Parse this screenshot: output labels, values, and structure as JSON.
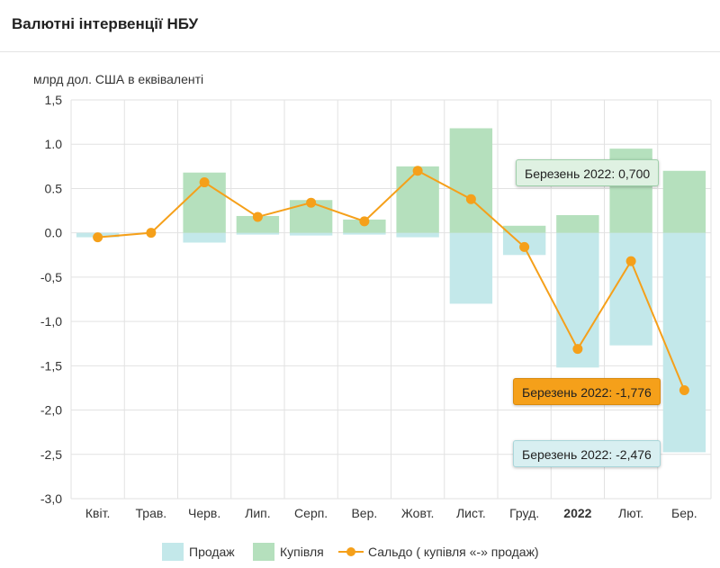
{
  "header": {
    "title": "Валютні інтервенції НБУ"
  },
  "chart_data": {
    "type": "bar",
    "ylabel": "млрд дол. США в еквіваленті",
    "ylim": [
      -3.0,
      1.5
    ],
    "y_ticks": [
      "1,5",
      "1.0",
      "0.5",
      "0.0",
      "-0,5",
      "-1,0",
      "-1,5",
      "-2,0",
      "-2,5",
      "-3,0"
    ],
    "y_tick_values": [
      1.5,
      1.0,
      0.5,
      0.0,
      -0.5,
      -1.0,
      -1.5,
      -2.0,
      -2.5,
      -3.0
    ],
    "categories": [
      "Квіт.",
      "Трав.",
      "Черв.",
      "Лип.",
      "Серп.",
      "Вер.",
      "Жовт.",
      "Лист.",
      "Груд.",
      "2022",
      "Лют.",
      "Бер."
    ],
    "bold_categories": [
      "2022"
    ],
    "grid": true,
    "legend_position": "bottom",
    "series": [
      {
        "name": "Продаж",
        "type": "bar",
        "color": "#c3e8ea",
        "values": [
          -0.05,
          0.0,
          -0.11,
          -0.02,
          -0.03,
          -0.02,
          -0.05,
          -0.8,
          -0.25,
          -1.52,
          -1.27,
          -2.476
        ]
      },
      {
        "name": "Купівля",
        "type": "bar",
        "color": "#b5e0bd",
        "values": [
          0.0,
          0.0,
          0.68,
          0.19,
          0.37,
          0.15,
          0.75,
          1.18,
          0.08,
          0.2,
          0.95,
          0.7
        ]
      },
      {
        "name": "Сальдо ( купівля «-» продаж)",
        "type": "line",
        "color": "#f5a01a",
        "values": [
          -0.05,
          0.0,
          0.57,
          0.18,
          0.34,
          0.13,
          0.7,
          0.38,
          -0.16,
          -1.31,
          -0.32,
          -1.776
        ]
      }
    ]
  },
  "tooltips": {
    "buy": "Березень 2022: 0,700",
    "net": "Березень 2022: -1,776",
    "sell": "Березень 2022: -2,476"
  }
}
